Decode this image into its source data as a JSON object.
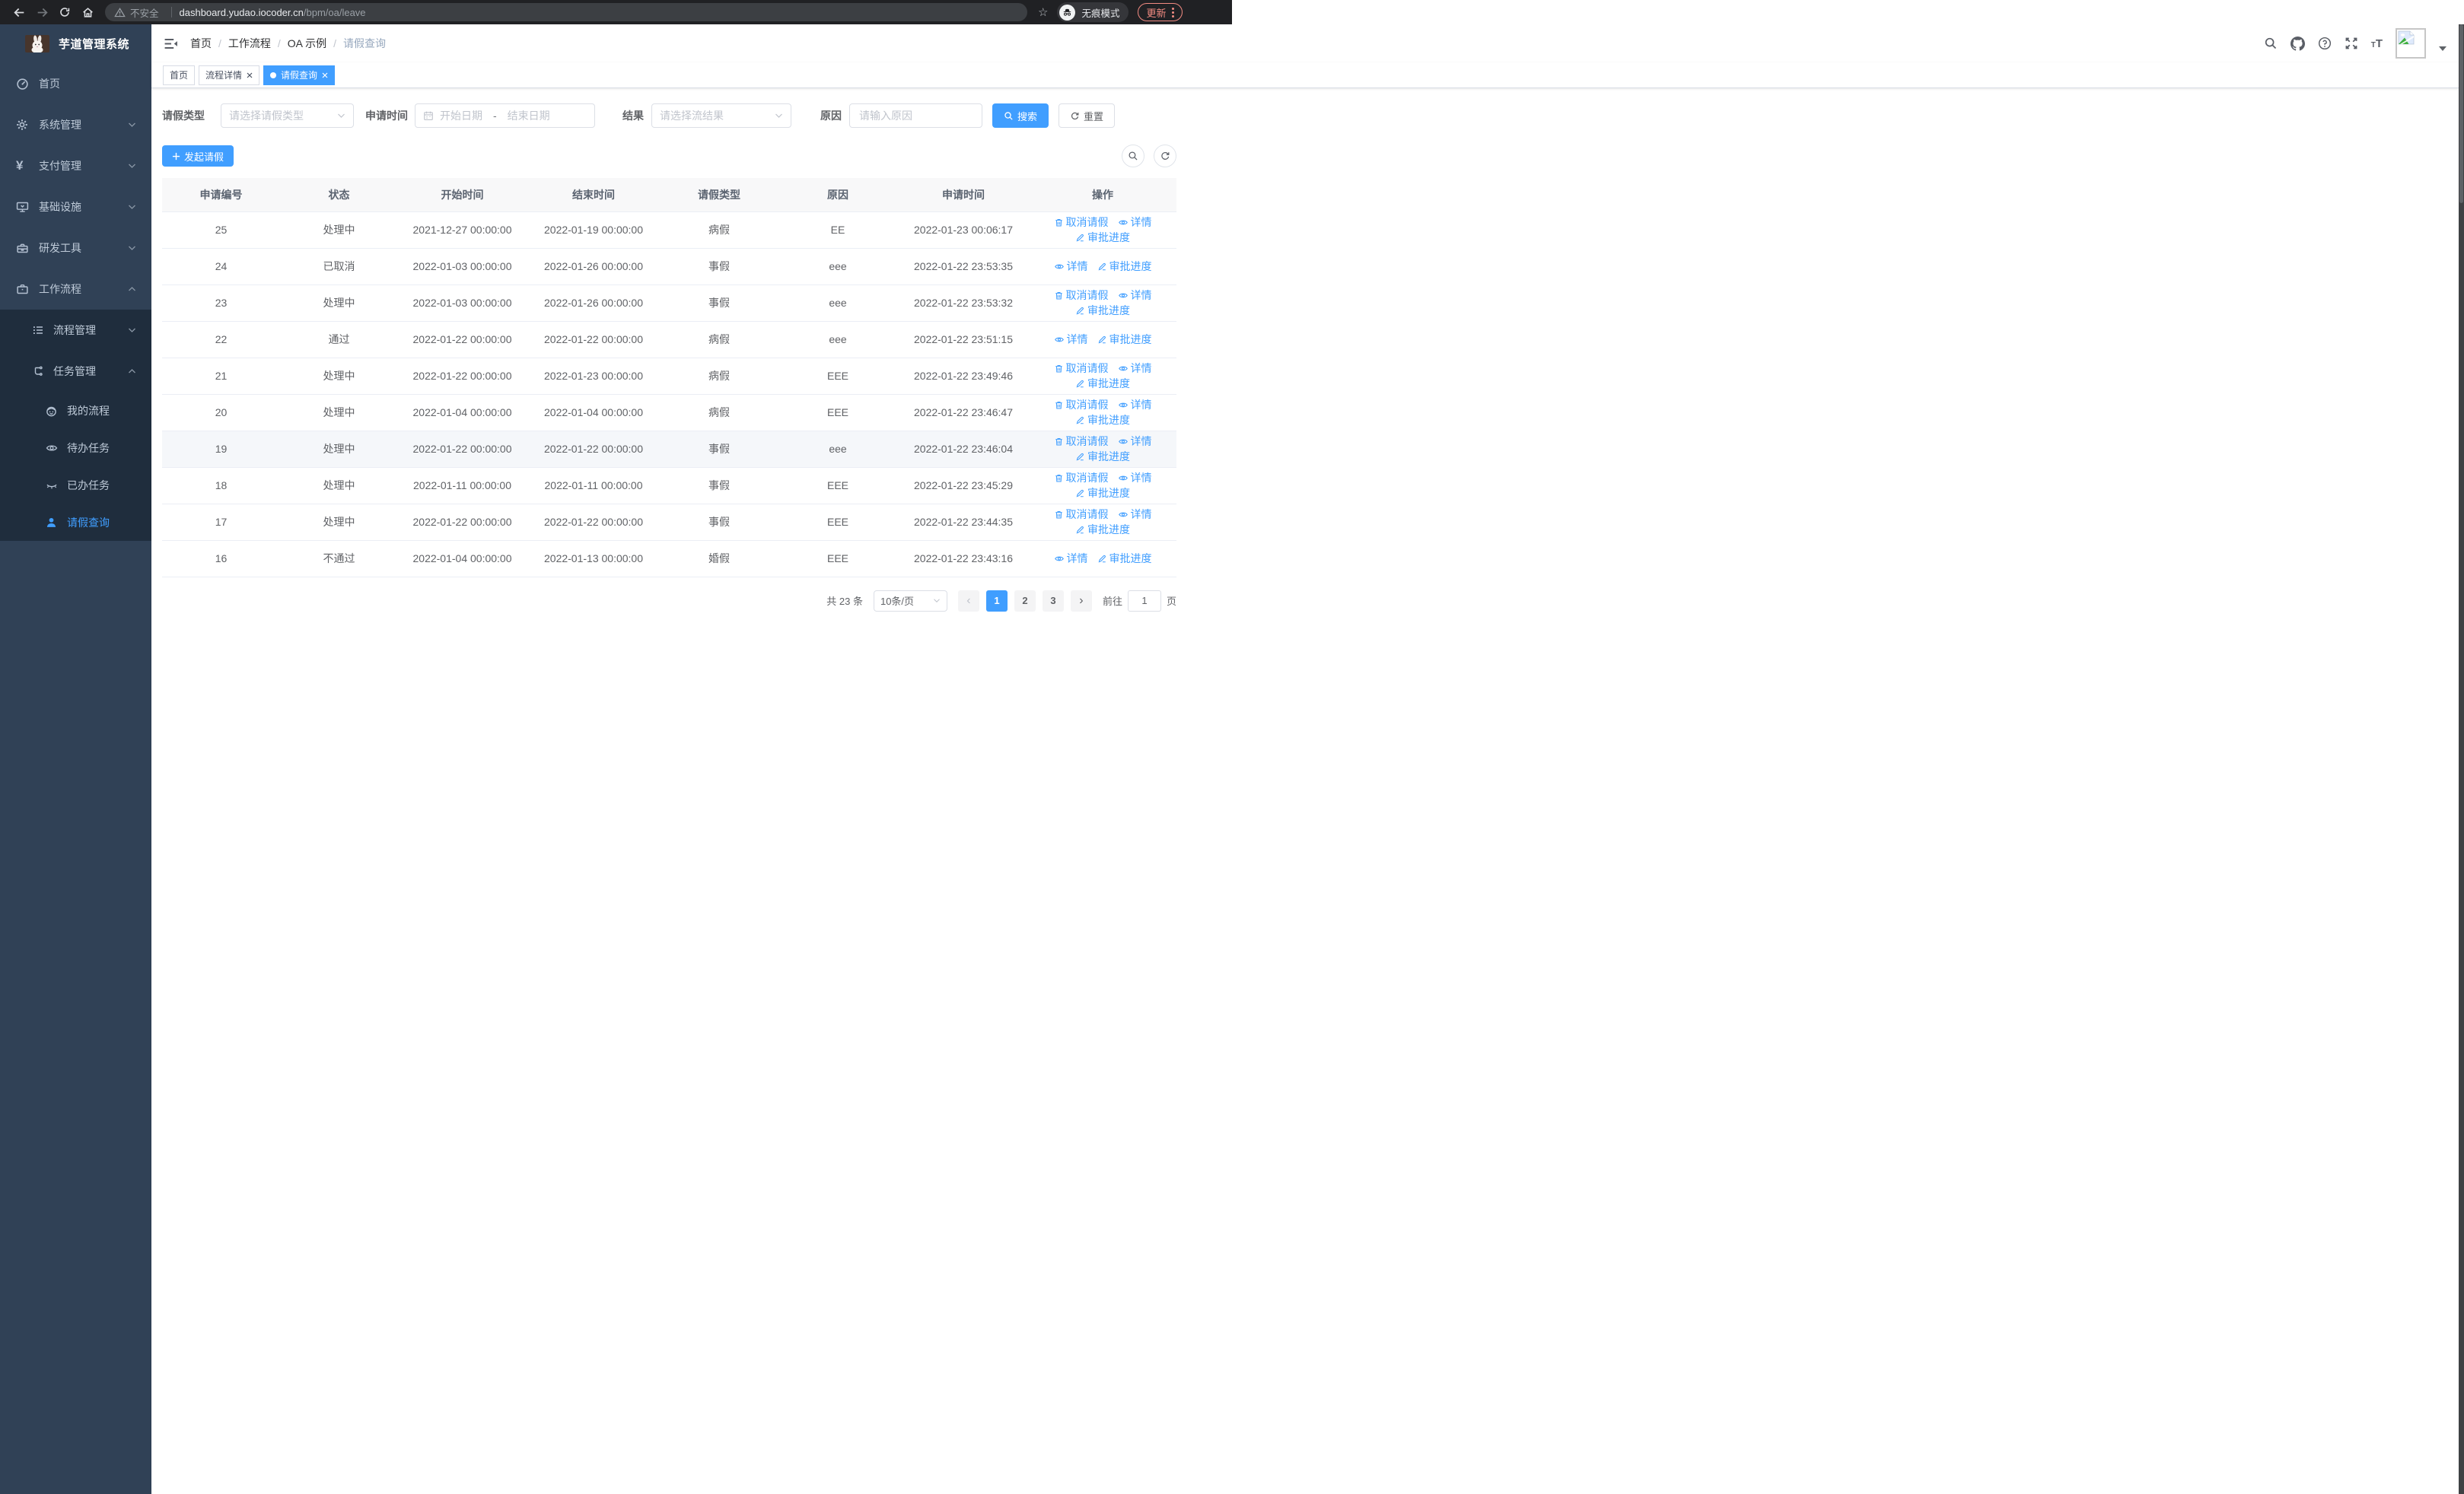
{
  "browser": {
    "security_label": "不安全",
    "url_host": "dashboard.yudao.iocoder.cn",
    "url_path": "/bpm/oa/leave",
    "incognito_label": "无痕模式",
    "update_label": "更新",
    "icons": [
      "back-icon",
      "forward-icon",
      "reload-icon",
      "home-icon",
      "warning-icon",
      "bookmark-star-icon",
      "incognito-icon",
      "more-menu-icon"
    ]
  },
  "colors": {
    "primary": "#409eff",
    "sidebar_bg": "#304156",
    "submenu_bg": "#1f2d3d",
    "update_accent": "#f28b82"
  },
  "sidebar": {
    "title": "芋道管理系统",
    "items": [
      {
        "label": "首页",
        "icon": "dashboard-icon"
      },
      {
        "label": "系统管理",
        "icon": "gear-icon",
        "chevron": "down"
      },
      {
        "label": "支付管理",
        "icon": "yen-icon",
        "chevron": "down"
      },
      {
        "label": "基础设施",
        "icon": "monitor-icon",
        "chevron": "down"
      },
      {
        "label": "研发工具",
        "icon": "toolbox-icon",
        "chevron": "down"
      },
      {
        "label": "工作流程",
        "icon": "briefcase-icon",
        "chevron": "up"
      },
      {
        "label": "流程管理",
        "icon": "flow-list-icon",
        "chevron": "down",
        "level": 2
      },
      {
        "label": "任务管理",
        "icon": "tasks-icon",
        "chevron": "up",
        "level": 2
      },
      {
        "label": "我的流程",
        "icon": "robot-icon",
        "level": 3
      },
      {
        "label": "待办任务",
        "icon": "eye-icon",
        "level": 3
      },
      {
        "label": "已办任务",
        "icon": "eye-closed-icon",
        "level": 3
      },
      {
        "label": "请假查询",
        "icon": "user-icon",
        "level": 3,
        "active": true
      }
    ]
  },
  "header": {
    "breadcrumb": {
      "separator": "/",
      "items": [
        "首页",
        "工作流程",
        "OA 示例",
        "请假查询"
      ]
    },
    "icons": [
      "collapse-menu-icon",
      "search-icon",
      "github-icon",
      "help-icon",
      "fullscreen-icon",
      "font-size-icon",
      "avatar-broken-image",
      "caret-down-icon"
    ],
    "font_size_glyph_small": "T",
    "font_size_glyph_big": "T"
  },
  "tabs": [
    {
      "label": "首页",
      "closable": false,
      "active": false
    },
    {
      "label": "流程详情",
      "closable": true,
      "active": false
    },
    {
      "label": "请假查询",
      "closable": true,
      "active": true
    }
  ],
  "filters": {
    "leave_type": {
      "label": "请假类型",
      "placeholder": "请选择请假类型"
    },
    "apply_time": {
      "label": "申请时间",
      "start_placeholder": "开始日期",
      "separator": "-",
      "end_placeholder": "结束日期"
    },
    "result": {
      "label": "结果",
      "placeholder": "请选择流结果"
    },
    "reason": {
      "label": "原因",
      "placeholder": "请输入原因"
    },
    "search_button": "搜索",
    "reset_button": "重置"
  },
  "toolbar": {
    "create_button": "发起请假"
  },
  "table": {
    "headers": [
      "申请编号",
      "状态",
      "开始时间",
      "结束时间",
      "请假类型",
      "原因",
      "申请时间",
      "操作"
    ],
    "action_labels": {
      "cancel": "取消请假",
      "detail": "详情",
      "progress": "审批进度"
    },
    "rows": [
      {
        "id": "25",
        "status": "处理中",
        "start": "2021-12-27 00:00:00",
        "end": "2022-01-19 00:00:00",
        "type": "病假",
        "reason": "EE",
        "apply_time": "2022-01-23 00:06:17",
        "actions": [
          "cancel",
          "detail",
          "progress"
        ]
      },
      {
        "id": "24",
        "status": "已取消",
        "start": "2022-01-03 00:00:00",
        "end": "2022-01-26 00:00:00",
        "type": "事假",
        "reason": "eee",
        "apply_time": "2022-01-22 23:53:35",
        "actions": [
          "detail",
          "progress"
        ]
      },
      {
        "id": "23",
        "status": "处理中",
        "start": "2022-01-03 00:00:00",
        "end": "2022-01-26 00:00:00",
        "type": "事假",
        "reason": "eee",
        "apply_time": "2022-01-22 23:53:32",
        "actions": [
          "cancel",
          "detail",
          "progress"
        ]
      },
      {
        "id": "22",
        "status": "通过",
        "start": "2022-01-22 00:00:00",
        "end": "2022-01-22 00:00:00",
        "type": "病假",
        "reason": "eee",
        "apply_time": "2022-01-22 23:51:15",
        "actions": [
          "detail",
          "progress"
        ]
      },
      {
        "id": "21",
        "status": "处理中",
        "start": "2022-01-22 00:00:00",
        "end": "2022-01-23 00:00:00",
        "type": "病假",
        "reason": "EEE",
        "apply_time": "2022-01-22 23:49:46",
        "actions": [
          "cancel",
          "detail",
          "progress"
        ]
      },
      {
        "id": "20",
        "status": "处理中",
        "start": "2022-01-04 00:00:00",
        "end": "2022-01-04 00:00:00",
        "type": "病假",
        "reason": "EEE",
        "apply_time": "2022-01-22 23:46:47",
        "actions": [
          "cancel",
          "detail",
          "progress"
        ]
      },
      {
        "id": "19",
        "status": "处理中",
        "start": "2022-01-22 00:00:00",
        "end": "2022-01-22 00:00:00",
        "type": "事假",
        "reason": "eee",
        "apply_time": "2022-01-22 23:46:04",
        "actions": [
          "cancel",
          "detail",
          "progress"
        ],
        "highlighted": true
      },
      {
        "id": "18",
        "status": "处理中",
        "start": "2022-01-11 00:00:00",
        "end": "2022-01-11 00:00:00",
        "type": "事假",
        "reason": "EEE",
        "apply_time": "2022-01-22 23:45:29",
        "actions": [
          "cancel",
          "detail",
          "progress"
        ]
      },
      {
        "id": "17",
        "status": "处理中",
        "start": "2022-01-22 00:00:00",
        "end": "2022-01-22 00:00:00",
        "type": "事假",
        "reason": "EEE",
        "apply_time": "2022-01-22 23:44:35",
        "actions": [
          "cancel",
          "detail",
          "progress"
        ]
      },
      {
        "id": "16",
        "status": "不通过",
        "start": "2022-01-04 00:00:00",
        "end": "2022-01-13 00:00:00",
        "type": "婚假",
        "reason": "EEE",
        "apply_time": "2022-01-22 23:43:16",
        "actions": [
          "detail",
          "progress"
        ]
      }
    ]
  },
  "pagination": {
    "total": "共 23 条",
    "page_size": "10条/页",
    "prev": "‹",
    "next": "›",
    "pages": [
      "1",
      "2",
      "3"
    ],
    "active_page": "1",
    "goto_label": "前往",
    "goto_value": "1",
    "goto_unit": "页"
  }
}
